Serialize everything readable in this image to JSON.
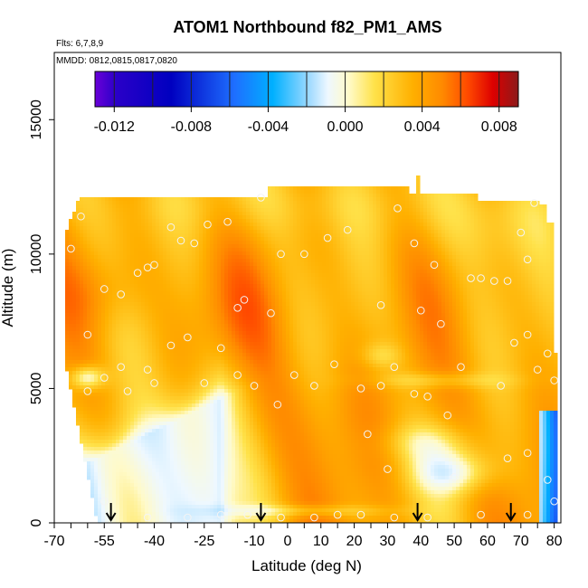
{
  "chart_data": {
    "type": "heatmap",
    "title": "ATOM1 Northbound f82_PM1_AMS",
    "flights_note": "Flts: 6,7,8,9",
    "dates_note": "MMDD: 0812,0815,0817,0820",
    "xlabel": "Latitude (deg N)",
    "ylabel": "Altitude (m)",
    "xlim": [
      -70,
      82
    ],
    "ylim": [
      0,
      17500
    ],
    "x_ticks": [
      -70,
      -55,
      -40,
      -25,
      -10,
      0,
      10,
      20,
      30,
      40,
      50,
      60,
      70,
      80
    ],
    "y_ticks": [
      0,
      5000,
      10000,
      15000
    ],
    "colorbar": {
      "min": -0.013,
      "max": 0.009,
      "ticks": [
        "-0.012",
        "-0.008",
        "-0.004",
        "0.000",
        "0.004",
        "0.008"
      ],
      "tick_values": [
        -0.012,
        -0.008,
        -0.004,
        0.0,
        0.004,
        0.008
      ],
      "boundaries": [
        -0.012,
        -0.01,
        -0.008,
        -0.006,
        -0.004,
        -0.002,
        0.0,
        0.002,
        0.004,
        0.006,
        0.008
      ]
    },
    "profile_markers_lat": [
      -53,
      -8,
      39,
      67
    ],
    "grid": false,
    "legend_position": "top-inset",
    "field_description": "Mostly positive values (0.003-0.005) across latitudes and altitudes; negative regions near surface south of -40 and north of 75, and at ~5500 m near -58 and ~1800 m near 45-55.",
    "samples": [
      {
        "lat": -65,
        "alt": 10200
      },
      {
        "lat": -62,
        "alt": 11400
      },
      {
        "lat": -55,
        "alt": 8700
      },
      {
        "lat": -50,
        "alt": 8500
      },
      {
        "lat": -45,
        "alt": 9300
      },
      {
        "lat": -42,
        "alt": 9500
      },
      {
        "lat": -40,
        "alt": 9600
      },
      {
        "lat": -35,
        "alt": 11000
      },
      {
        "lat": -32,
        "alt": 10500
      },
      {
        "lat": -28,
        "alt": 10400
      },
      {
        "lat": -24,
        "alt": 11100
      },
      {
        "lat": -18,
        "alt": 11200
      },
      {
        "lat": -15,
        "alt": 8000
      },
      {
        "lat": -13,
        "alt": 8300
      },
      {
        "lat": -8,
        "alt": 12100
      },
      {
        "lat": -5,
        "alt": 7800
      },
      {
        "lat": -2,
        "alt": 10000
      },
      {
        "lat": 5,
        "alt": 10000
      },
      {
        "lat": 12,
        "alt": 10600
      },
      {
        "lat": 18,
        "alt": 10900
      },
      {
        "lat": 28,
        "alt": 8100
      },
      {
        "lat": 33,
        "alt": 11700
      },
      {
        "lat": 38,
        "alt": 10400
      },
      {
        "lat": 40,
        "alt": 7900
      },
      {
        "lat": 44,
        "alt": 9600
      },
      {
        "lat": 46,
        "alt": 7400
      },
      {
        "lat": 55,
        "alt": 9100
      },
      {
        "lat": 58,
        "alt": 9100
      },
      {
        "lat": 62,
        "alt": 9000
      },
      {
        "lat": 66,
        "alt": 9000
      },
      {
        "lat": 70,
        "alt": 10800
      },
      {
        "lat": 72,
        "alt": 9800
      },
      {
        "lat": 74,
        "alt": 11900
      },
      {
        "lat": -60,
        "alt": 7000
      },
      {
        "lat": -55,
        "alt": 5400
      },
      {
        "lat": -50,
        "alt": 5800
      },
      {
        "lat": -42,
        "alt": 5700
      },
      {
        "lat": -35,
        "alt": 6600
      },
      {
        "lat": -30,
        "alt": 6900
      },
      {
        "lat": -25,
        "alt": 5200
      },
      {
        "lat": -20,
        "alt": 6500
      },
      {
        "lat": -15,
        "alt": 5500
      },
      {
        "lat": -10,
        "alt": 5100
      },
      {
        "lat": -3,
        "alt": 4400
      },
      {
        "lat": 2,
        "alt": 5500
      },
      {
        "lat": 8,
        "alt": 5100
      },
      {
        "lat": 14,
        "alt": 5900
      },
      {
        "lat": 22,
        "alt": 5000
      },
      {
        "lat": 28,
        "alt": 5100
      },
      {
        "lat": 32,
        "alt": 5800
      },
      {
        "lat": 38,
        "alt": 4800
      },
      {
        "lat": 42,
        "alt": 4700
      },
      {
        "lat": 48,
        "alt": 4000
      },
      {
        "lat": 52,
        "alt": 5800
      },
      {
        "lat": 64,
        "alt": 5100
      },
      {
        "lat": 68,
        "alt": 6700
      },
      {
        "lat": 72,
        "alt": 7000
      },
      {
        "lat": 75,
        "alt": 5700
      },
      {
        "lat": 78,
        "alt": 6300
      },
      {
        "lat": 80,
        "alt": 5300
      },
      {
        "lat": -48,
        "alt": 4900
      },
      {
        "lat": -40,
        "alt": 5200
      },
      {
        "lat": -60,
        "alt": 4900
      },
      {
        "lat": 24,
        "alt": 3300
      },
      {
        "lat": 30,
        "alt": 2000
      },
      {
        "lat": 50,
        "alt": 1700
      },
      {
        "lat": 66,
        "alt": 2400
      },
      {
        "lat": 72,
        "alt": 2600
      },
      {
        "lat": 78,
        "alt": 1600
      },
      {
        "lat": 80,
        "alt": 800
      },
      {
        "lat": -30,
        "alt": 200
      },
      {
        "lat": -20,
        "alt": 300
      },
      {
        "lat": -12,
        "alt": 300
      },
      {
        "lat": -2,
        "alt": 200
      },
      {
        "lat": 8,
        "alt": 200
      },
      {
        "lat": 15,
        "alt": 300
      },
      {
        "lat": 22,
        "alt": 300
      },
      {
        "lat": 32,
        "alt": 200
      },
      {
        "lat": 42,
        "alt": 200
      },
      {
        "lat": 58,
        "alt": 300
      },
      {
        "lat": 72,
        "alt": 300
      },
      {
        "lat": -55,
        "alt": 800
      },
      {
        "lat": -42,
        "alt": 200
      }
    ]
  }
}
